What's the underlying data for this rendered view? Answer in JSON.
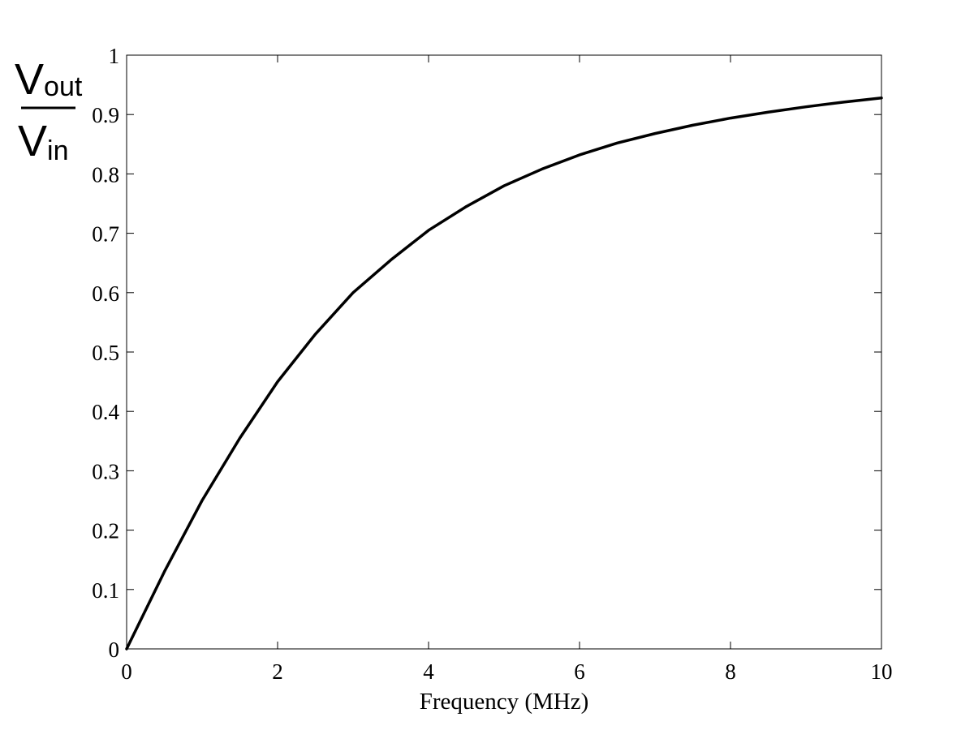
{
  "chart_data": {
    "type": "line",
    "title": "",
    "xlabel": "Frequency (MHz)",
    "ylabel": {
      "numerator_main": "V",
      "numerator_sub": "out",
      "denominator_main": "V",
      "denominator_sub": "in"
    },
    "xlim": [
      0,
      10
    ],
    "ylim": [
      0,
      1
    ],
    "x_ticks": [
      "0",
      "2",
      "4",
      "6",
      "8",
      "10"
    ],
    "y_ticks": [
      "0",
      "0.1",
      "0.2",
      "0.3",
      "0.4",
      "0.5",
      "0.6",
      "0.7",
      "0.8",
      "0.9",
      "1"
    ],
    "grid": false,
    "legend": "none",
    "line_color": "#000000",
    "series": [
      {
        "x": [
          0,
          0.5,
          1,
          1.5,
          2,
          2.5,
          3,
          3.5,
          4,
          4.5,
          5,
          5.5,
          6,
          6.5,
          7,
          7.5,
          8,
          8.5,
          9,
          9.5,
          10
        ],
        "values": [
          0,
          0.13,
          0.25,
          0.355,
          0.45,
          0.53,
          0.6,
          0.655,
          0.705,
          0.745,
          0.78,
          0.808,
          0.832,
          0.852,
          0.868,
          0.882,
          0.894,
          0.904,
          0.913,
          0.921,
          0.928
        ]
      }
    ]
  }
}
